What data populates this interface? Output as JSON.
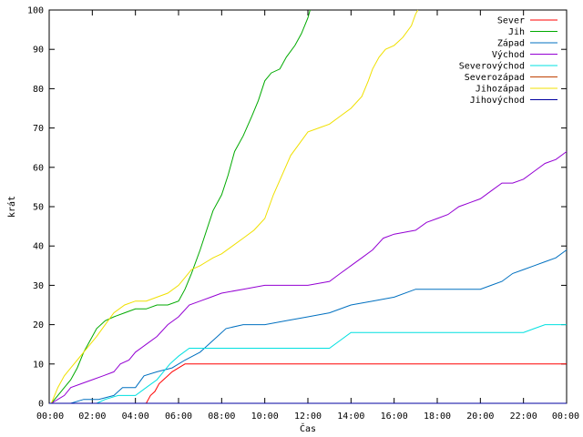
{
  "chart_data": {
    "type": "line",
    "xlabel": "Čas",
    "ylabel": "krát",
    "xlim": [
      0,
      24
    ],
    "ylim": [
      0,
      100
    ],
    "x_tick_values": [
      0,
      2,
      4,
      6,
      8,
      10,
      12,
      14,
      16,
      18,
      20,
      22,
      24
    ],
    "x_tick_labels": [
      "00:00",
      "02:00",
      "04:00",
      "06:00",
      "08:00",
      "10:00",
      "12:00",
      "14:00",
      "16:00",
      "18:00",
      "20:00",
      "22:00",
      "00:00"
    ],
    "y_tick_values": [
      0,
      10,
      20,
      30,
      40,
      50,
      60,
      70,
      80,
      90,
      100
    ],
    "y_tick_labels": [
      "0",
      "10",
      "20",
      "30",
      "40",
      "50",
      "60",
      "70",
      "80",
      "90",
      "100"
    ],
    "grid": false,
    "legend_position": "top-right",
    "series": [
      {
        "name": "Sever",
        "color": "#ff0000",
        "x": [
          4.5,
          4.7,
          4.9,
          5.1,
          5.3,
          5.5,
          5.7,
          6.0,
          6.3,
          24
        ],
        "y": [
          0,
          2,
          3,
          5,
          6,
          7,
          8,
          9,
          10,
          10
        ]
      },
      {
        "name": "Jih",
        "color": "#00aa00",
        "x": [
          0.1,
          0.4,
          0.7,
          1.0,
          1.3,
          1.6,
          1.9,
          2.2,
          2.6,
          3.0,
          3.5,
          4.0,
          4.5,
          5.0,
          5.5,
          6.0,
          6.3,
          6.6,
          7.0,
          7.3,
          7.6,
          8.0,
          8.3,
          8.6,
          9.0,
          9.4,
          9.7,
          10.0,
          10.3,
          10.7,
          11.0,
          11.4,
          11.7,
          12.0,
          12.1
        ],
        "y": [
          0,
          2,
          4,
          6,
          9,
          13,
          16,
          19,
          21,
          22,
          23,
          24,
          24,
          25,
          25,
          26,
          29,
          33,
          39,
          44,
          49,
          53,
          58,
          64,
          68,
          73,
          77,
          82,
          84,
          85,
          88,
          91,
          94,
          98,
          100
        ]
      },
      {
        "name": "Západ",
        "color": "#0070c0",
        "x": [
          1.0,
          1.6,
          2.3,
          3.0,
          3.4,
          4.0,
          4.4,
          5.0,
          5.7,
          6.3,
          7.0,
          7.4,
          7.8,
          8.2,
          9.0,
          10.0,
          11.0,
          12.0,
          13.0,
          14.0,
          15.0,
          16.0,
          17.0,
          18.0,
          19.0,
          20.0,
          20.5,
          21.0,
          21.5,
          22.0,
          22.5,
          23.0,
          23.5,
          24.0
        ],
        "y": [
          0,
          1,
          1,
          2,
          4,
          4,
          7,
          8,
          9,
          11,
          13,
          15,
          17,
          19,
          20,
          20,
          21,
          22,
          23,
          25,
          26,
          27,
          29,
          29,
          29,
          29,
          30,
          31,
          33,
          34,
          35,
          36,
          37,
          39
        ]
      },
      {
        "name": "Východ",
        "color": "#9400d3",
        "x": [
          0.1,
          0.4,
          0.7,
          1.0,
          1.5,
          2.0,
          2.5,
          3.0,
          3.3,
          3.7,
          4.0,
          4.5,
          5.0,
          5.5,
          6.0,
          6.5,
          7.0,
          7.5,
          8.0,
          9.0,
          10.0,
          11.0,
          12.0,
          13.0,
          13.5,
          14.0,
          14.5,
          15.0,
          15.5,
          16.0,
          17.0,
          17.5,
          18.0,
          18.5,
          19.0,
          19.5,
          20.0,
          20.5,
          21.0,
          21.5,
          22.0,
          22.5,
          23.0,
          23.5,
          24.0
        ],
        "y": [
          0,
          1,
          2,
          4,
          5,
          6,
          7,
          8,
          10,
          11,
          13,
          15,
          17,
          20,
          22,
          25,
          26,
          27,
          28,
          29,
          30,
          30,
          30,
          31,
          33,
          35,
          37,
          39,
          42,
          43,
          44,
          46,
          47,
          48,
          50,
          51,
          52,
          54,
          56,
          56,
          57,
          59,
          61,
          62,
          64
        ]
      },
      {
        "name": "Severovýchod",
        "color": "#00e0e0",
        "x": [
          2.2,
          2.6,
          3.2,
          4.0,
          4.5,
          5.0,
          5.3,
          5.6,
          6.0,
          6.5,
          7.0,
          8.0,
          9.0,
          10.0,
          11.0,
          12.0,
          12.5,
          13.0,
          13.5,
          14.0,
          15.0,
          16.0,
          17.0,
          18.0,
          19.0,
          20.0,
          21.0,
          21.5,
          22.0,
          22.5,
          23.0,
          24.0
        ],
        "y": [
          0,
          1,
          2,
          2,
          4,
          6,
          8,
          10,
          12,
          14,
          14,
          14,
          14,
          14,
          14,
          14,
          14,
          14,
          16,
          18,
          18,
          18,
          18,
          18,
          18,
          18,
          18,
          18,
          18,
          19,
          20,
          20
        ]
      },
      {
        "name": "Severozápad",
        "color": "#c04000",
        "x": [
          0,
          24
        ],
        "y": [
          0,
          0
        ]
      },
      {
        "name": "Jihozápad",
        "color": "#f0e000",
        "x": [
          0.1,
          0.4,
          0.7,
          1.0,
          1.3,
          1.6,
          1.9,
          2.2,
          2.6,
          3.0,
          3.5,
          4.0,
          4.5,
          5.0,
          5.5,
          6.0,
          6.3,
          6.6,
          7.0,
          7.3,
          7.6,
          8.0,
          8.5,
          9.0,
          9.5,
          10.0,
          10.4,
          10.8,
          11.2,
          11.6,
          12.0,
          12.5,
          13.0,
          13.5,
          14.0,
          14.5,
          14.8,
          15.0,
          15.3,
          15.6,
          16.0,
          16.4,
          16.8,
          17.0,
          17.1
        ],
        "y": [
          0,
          4,
          7,
          9,
          11,
          13,
          15,
          17,
          20,
          23,
          25,
          26,
          26,
          27,
          28,
          30,
          32,
          34,
          35,
          36,
          37,
          38,
          40,
          42,
          44,
          47,
          53,
          58,
          63,
          66,
          69,
          70,
          71,
          73,
          75,
          78,
          82,
          85,
          88,
          90,
          91,
          93,
          96,
          99,
          100
        ]
      },
      {
        "name": "Jihovýchod",
        "color": "#0000a0",
        "x": [
          0,
          24
        ],
        "y": [
          0,
          0
        ]
      }
    ]
  }
}
